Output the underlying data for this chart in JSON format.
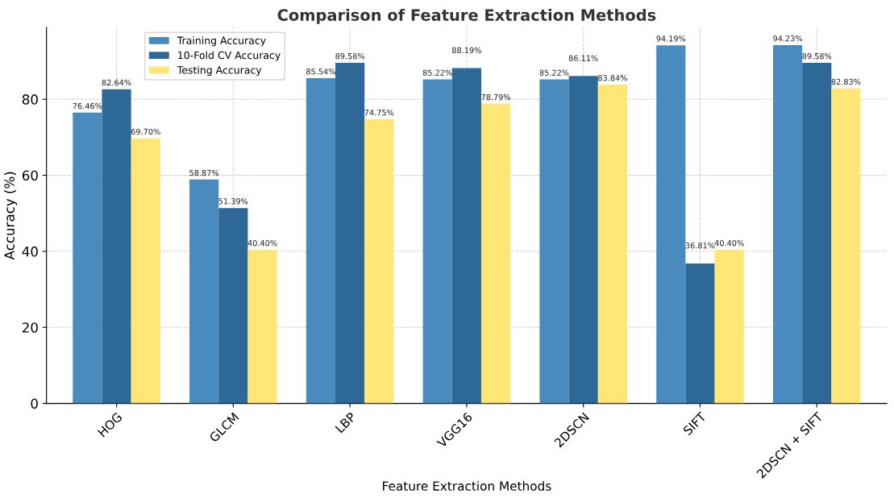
{
  "chart_data": {
    "type": "bar",
    "title": "Comparison of Feature Extraction Methods",
    "xlabel": "Feature Extraction Methods",
    "ylabel": "Accuracy (%)",
    "categories": [
      "HOG",
      "GLCM",
      "LBP",
      "VGG16",
      "2DSCN",
      "SIFT",
      "2DSCN + SIFT"
    ],
    "series": [
      {
        "name": "Training Accuracy",
        "color": "#4a8bbf",
        "values": [
          76.46,
          58.87,
          85.54,
          85.22,
          85.22,
          94.19,
          94.23
        ],
        "value_labels": [
          "76.46%",
          "58.87%",
          "85.54%",
          "85.22%",
          "85.22%",
          "94.19%",
          "94.23%"
        ]
      },
      {
        "name": "10-Fold CV Accuracy",
        "color": "#2e6896",
        "values": [
          82.64,
          51.39,
          89.58,
          88.19,
          86.11,
          36.81,
          89.58
        ],
        "value_labels": [
          "82.64%",
          "51.39%",
          "89.58%",
          "88.19%",
          "86.11%",
          "36.81%",
          "89.58%"
        ]
      },
      {
        "name": "Testing Accuracy",
        "color": "#ffe677",
        "values": [
          69.7,
          40.4,
          74.75,
          78.79,
          83.84,
          40.4,
          82.83
        ],
        "value_labels": [
          "69.70%",
          "40.40%",
          "74.75%",
          "78.79%",
          "83.84%",
          "40.40%",
          "82.83%"
        ]
      }
    ],
    "ylim": [
      0,
      98.9
    ],
    "yticks": [
      0,
      20,
      40,
      60,
      80
    ],
    "grid": true,
    "legend": "top left"
  }
}
